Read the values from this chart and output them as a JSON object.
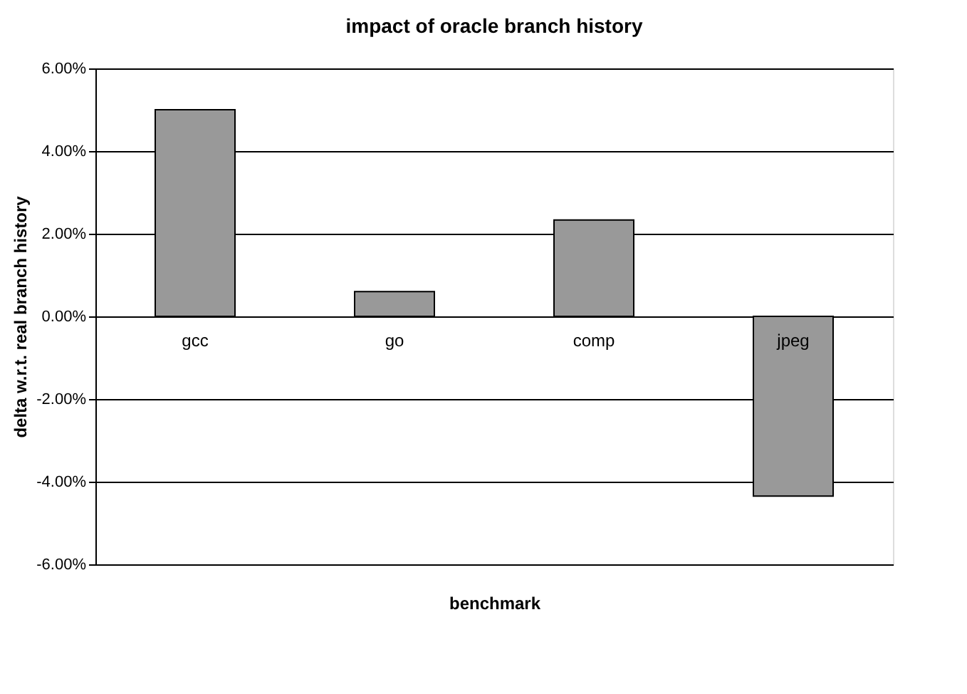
{
  "chart_data": {
    "type": "bar",
    "title": "impact of oracle branch history",
    "xlabel": "benchmark",
    "ylabel": "delta w.r.t. real branch history",
    "categories": [
      "gcc",
      "go",
      "comp",
      "jpeg"
    ],
    "values": [
      5.0,
      0.6,
      2.33,
      -4.35
    ],
    "color": "#999999",
    "ylim": [
      -6,
      6
    ],
    "yticks": [
      {
        "value": -6,
        "label": "-6.00%"
      },
      {
        "value": -4,
        "label": "-4.00%"
      },
      {
        "value": -2,
        "label": "-2.00%"
      },
      {
        "value": 0,
        "label": "0.00%"
      },
      {
        "value": 2,
        "label": "2.00%"
      },
      {
        "value": 4,
        "label": "4.00%"
      },
      {
        "value": 6,
        "label": "6.00%"
      }
    ],
    "grid": "y"
  }
}
